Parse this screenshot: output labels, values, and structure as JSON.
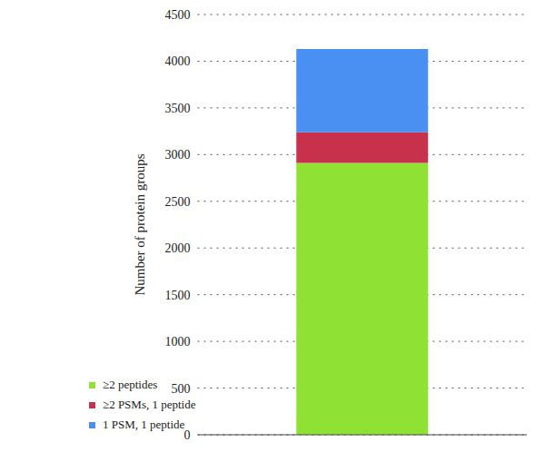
{
  "chart_data": {
    "type": "bar",
    "ylabel": "Number of protein groups",
    "categories": [
      null
    ],
    "series": [
      {
        "name": "≥2 peptides",
        "color": "#8fe133",
        "values": [
          2910
        ]
      },
      {
        "name": "≥2 PSMs, 1 peptide",
        "color": "#c8314b",
        "values": [
          330
        ]
      },
      {
        "name": "1 PSM, 1 peptide",
        "color": "#4a8ff2",
        "values": [
          890
        ]
      }
    ],
    "ylim": [
      0,
      4500
    ],
    "yticks": [
      0,
      500,
      1000,
      1500,
      2000,
      2500,
      3000,
      3500,
      4000,
      4500
    ],
    "stacked": true,
    "grid": true,
    "legend": "bottom"
  }
}
